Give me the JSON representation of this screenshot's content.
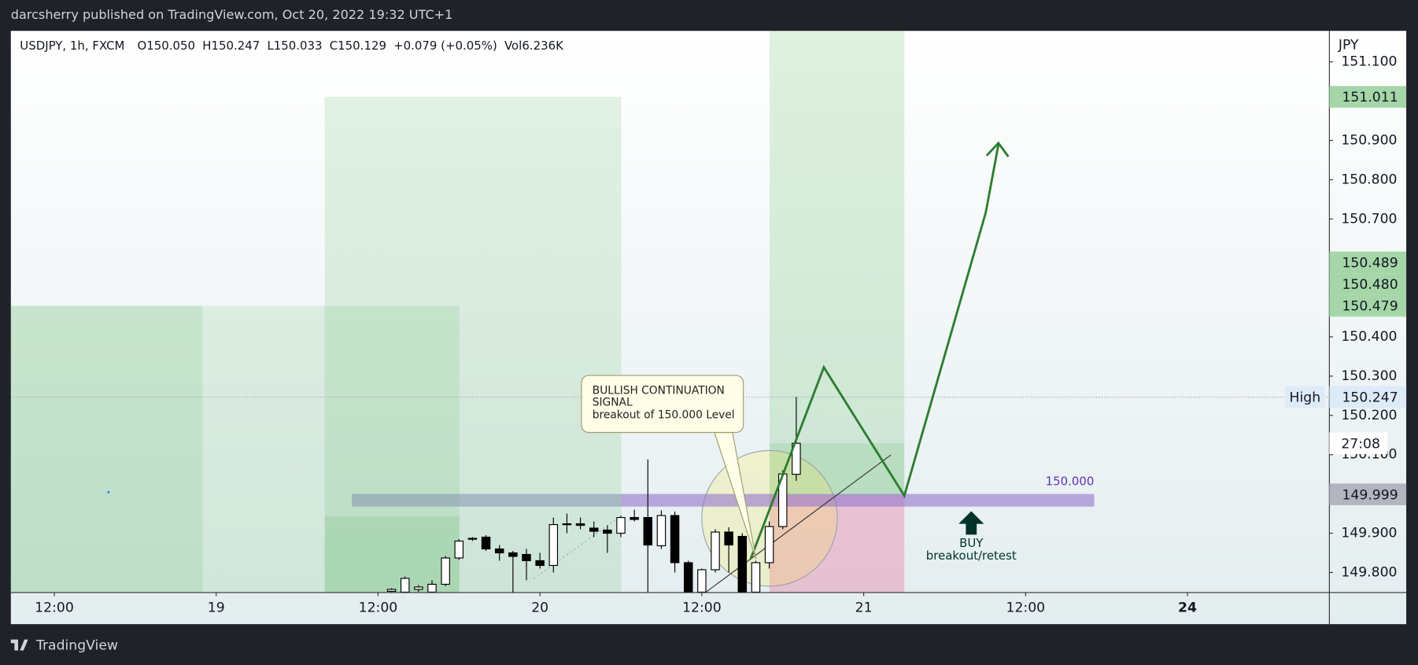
{
  "header": {
    "title": "darcsherry published on TradingView.com, Oct 20, 2022 19:32 UTC+1"
  },
  "chart_data": {
    "type": "candlestick",
    "title": "USDJPY, 1h, FXCM",
    "legend_values": [
      "O150.050",
      "H150.247",
      "L150.033",
      "C150.129",
      "+0.079 (+0.05%)",
      "Vol6.236K"
    ],
    "currency": "JPY",
    "x": [
      25,
      26,
      27,
      28,
      29,
      30,
      31,
      32,
      33,
      34,
      35,
      36,
      37,
      38,
      39,
      40,
      41,
      42,
      43,
      44,
      45,
      46,
      47,
      48,
      49,
      50,
      51,
      52,
      53,
      54,
      55
    ],
    "open": [
      149.752,
      149.75,
      149.757,
      149.75,
      149.77,
      149.837,
      149.887,
      149.89,
      149.86,
      149.85,
      149.846,
      149.83,
      149.818,
      149.922,
      149.924,
      149.913,
      149.908,
      149.9,
      149.94,
      149.94,
      149.868,
      149.945,
      149.825,
      149.75,
      149.807,
      149.903,
      149.892,
      149.75,
      149.825,
      149.917,
      150.05
    ],
    "high": [
      149.76,
      149.79,
      149.768,
      149.78,
      149.842,
      149.885,
      149.89,
      149.895,
      149.87,
      149.855,
      149.86,
      149.85,
      149.94,
      149.95,
      149.94,
      149.93,
      149.92,
      149.945,
      149.96,
      150.088,
      149.958,
      149.955,
      149.83,
      149.81,
      149.91,
      149.915,
      149.9,
      149.83,
      149.93,
      150.06,
      150.247
    ],
    "low": [
      149.745,
      149.745,
      149.75,
      149.745,
      149.765,
      149.832,
      149.88,
      149.855,
      149.83,
      149.745,
      149.78,
      149.81,
      149.8,
      149.9,
      149.91,
      149.89,
      149.85,
      149.89,
      149.93,
      149.745,
      149.86,
      149.8,
      149.745,
      149.745,
      149.8,
      149.8,
      149.745,
      149.745,
      149.81,
      149.91,
      150.033
    ],
    "close": [
      149.757,
      149.785,
      149.763,
      149.77,
      149.837,
      149.88,
      149.885,
      149.86,
      149.85,
      149.841,
      149.83,
      149.818,
      149.922,
      149.924,
      149.92,
      149.905,
      149.9,
      149.94,
      149.935,
      149.87,
      149.945,
      149.825,
      149.75,
      149.807,
      149.903,
      149.87,
      149.75,
      149.825,
      149.917,
      150.051,
      150.129
    ],
    "colors": {
      "up": "#ffffff",
      "down": "#000000",
      "wick": "#000000"
    },
    "xlim": [
      -3.22,
      94.52
    ],
    "xticks": [
      {
        "value": 0,
        "label": "12:00"
      },
      {
        "value": 12,
        "label": "19"
      },
      {
        "value": 24,
        "label": "12:00"
      },
      {
        "value": 36,
        "label": "20"
      },
      {
        "value": 48,
        "label": "12:00"
      },
      {
        "value": 60,
        "label": "21"
      },
      {
        "value": 72,
        "label": "12:00"
      },
      {
        "value": 84,
        "label": "24"
      }
    ],
    "ylim": [
      149.749,
      151.179
    ],
    "yticks": [
      {
        "value": 151.1,
        "label": "151.100"
      },
      {
        "value": 150.9,
        "label": "150.900"
      },
      {
        "value": 150.8,
        "label": "150.800"
      },
      {
        "value": 150.7,
        "label": "150.700"
      },
      {
        "value": 150.4,
        "label": "150.400"
      },
      {
        "value": 150.3,
        "label": "150.300"
      },
      {
        "value": 150.2,
        "label": "150.200"
      },
      {
        "value": 150.1,
        "label": "150.100"
      },
      {
        "value": 149.9,
        "label": "149.900"
      },
      {
        "value": 149.8,
        "label": "149.800"
      }
    ],
    "price_labels": [
      {
        "value": 151.011,
        "label": "151.011",
        "color": "#a5d6a7"
      },
      {
        "value": 150.489,
        "label": "150.489",
        "color": "#a5d6a7"
      },
      {
        "value": 150.48,
        "label": "150.480",
        "color": "#a5d6a7"
      },
      {
        "value": 150.479,
        "label": "150.479",
        "color": "#a5d6a7"
      },
      {
        "value": 150.247,
        "label": "150.247",
        "color": "#dcebf7"
      },
      {
        "value": 149.999,
        "label": "149.999",
        "color": "#b2b5be"
      }
    ],
    "annotations": {
      "callout": [
        "BULLISH CONTINUATION",
        "SIGNAL",
        "breakout of 150.000 Level"
      ],
      "level": "150.000",
      "buy": "BUY",
      "buy_sub": "breakout/retest",
      "high": "High",
      "countdown": "27:08"
    }
  },
  "footer": {
    "brand": "TradingView"
  }
}
